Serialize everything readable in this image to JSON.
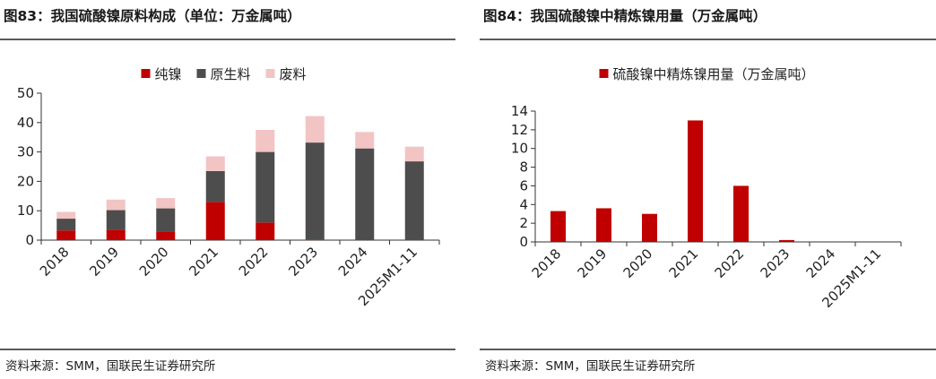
{
  "figures": [
    {
      "title": "图83：我国硫酸镍原料构成（单位：万金属吨）",
      "source": "资料来源：SMM，国联民生证券研究所"
    },
    {
      "title": "图84：我国硫酸镍中精炼镍用量（万金属吨）",
      "source": "资料来源：SMM，国联民生证券研究所"
    }
  ],
  "chart_data": [
    {
      "type": "bar",
      "stacked": true,
      "title": "我国硫酸镍原料构成（单位：万金属吨）",
      "categories": [
        "2018",
        "2019",
        "2020",
        "2021",
        "2022",
        "2023",
        "2024",
        "2025M1-11"
      ],
      "series": [
        {
          "name": "纯镍",
          "color": "#c00000",
          "values": [
            3.3,
            3.6,
            3.0,
            13.0,
            6.0,
            0.2,
            0,
            0
          ]
        },
        {
          "name": "原生料",
          "color": "#4d4d4d",
          "values": [
            4.0,
            6.6,
            7.8,
            10.5,
            24.0,
            33.0,
            31.2,
            26.8
          ]
        },
        {
          "name": "废料",
          "color": "#f2c4c4",
          "values": [
            2.3,
            3.6,
            3.5,
            5.0,
            7.5,
            9.0,
            5.6,
            5.0
          ]
        }
      ],
      "ylim": [
        0,
        50
      ],
      "yticks": [
        0,
        10,
        20,
        30,
        40,
        50
      ],
      "legend_position": "top-center",
      "grid": false
    },
    {
      "type": "bar",
      "title": "我国硫酸镍中精炼镍用量（万金属吨）",
      "categories": [
        "2018",
        "2019",
        "2020",
        "2021",
        "2022",
        "2023",
        "2024",
        "2025M1-11"
      ],
      "series": [
        {
          "name": "硫酸镍中精炼镍用量（万金属吨）",
          "color": "#c00000",
          "values": [
            3.3,
            3.6,
            3.0,
            13.0,
            6.0,
            0.2,
            0,
            0
          ]
        }
      ],
      "ylim": [
        0,
        14
      ],
      "yticks": [
        0,
        2,
        4,
        6,
        8,
        10,
        12,
        14
      ],
      "legend_position": "top-center",
      "grid": false
    }
  ]
}
